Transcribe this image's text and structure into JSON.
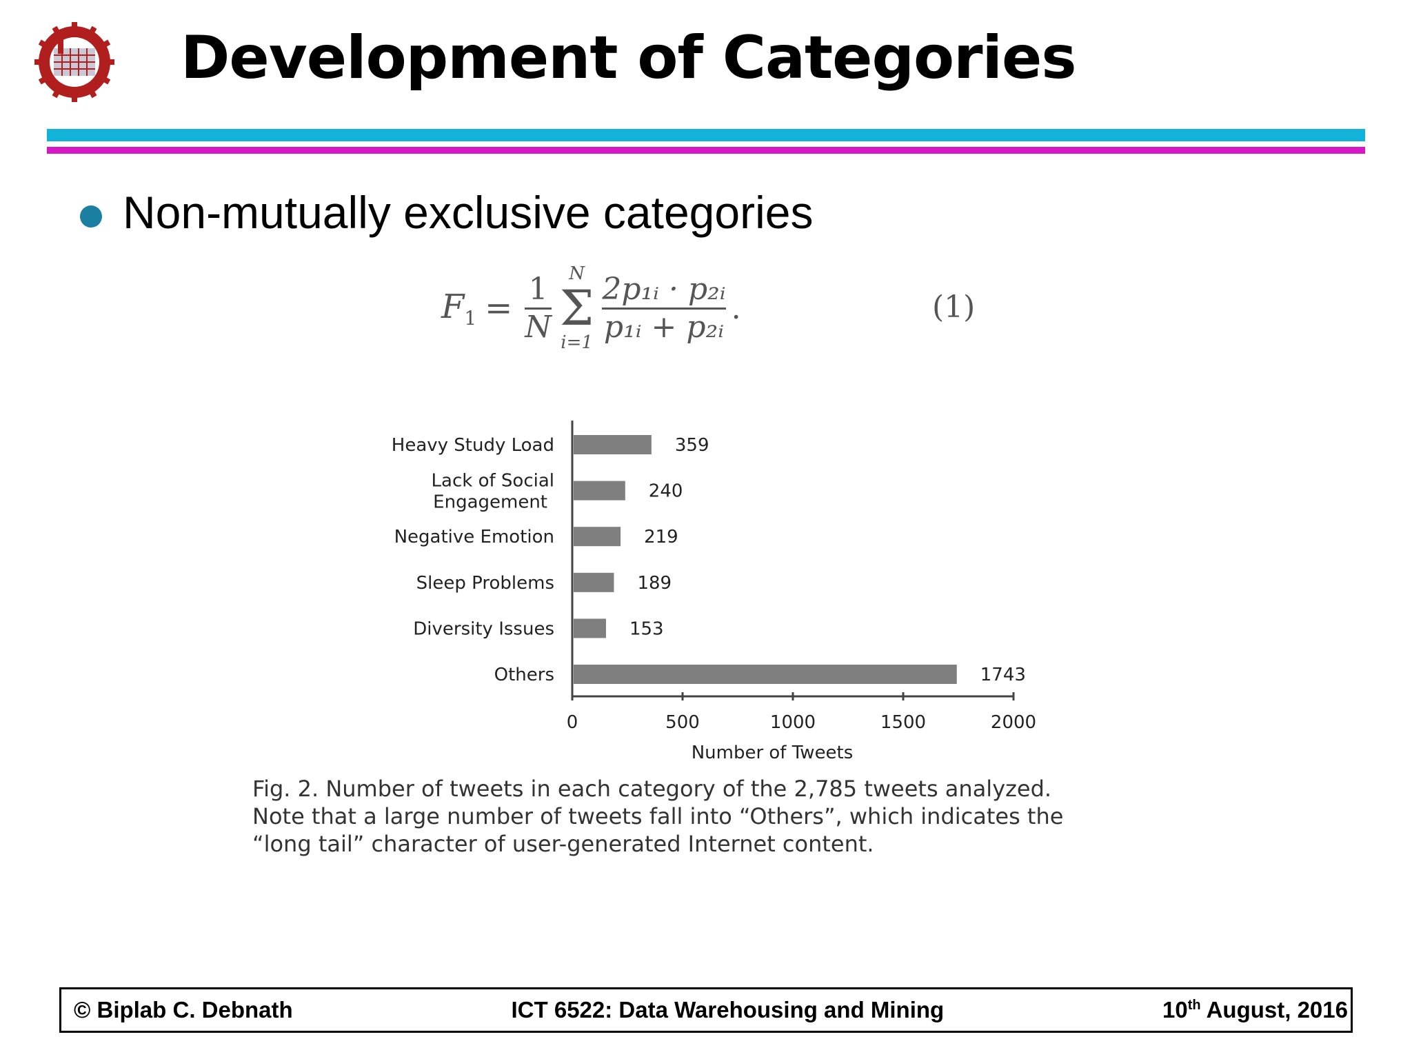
{
  "slide": {
    "title": "Development of Categories",
    "bullet": "Non-mutually exclusive categories",
    "colors": {
      "rule_top": "#12b3d9",
      "rule_bottom": "#d617c6",
      "bullet": "#1a7fa1",
      "logo": "#b01e1e"
    },
    "logo_icon": "university-seal-icon"
  },
  "formula": {
    "lhs": "F",
    "lhs_sub": "1",
    "equals": "=",
    "frac1_num": "1",
    "frac1_den": "N",
    "sum_upper": "N",
    "sum_lower": "i=1",
    "frac2_num": "2p₁ᵢ · p₂ᵢ",
    "frac2_den": "p₁ᵢ + p₂ᵢ",
    "terminator": ".",
    "number": "(1)"
  },
  "chart_data": {
    "type": "bar",
    "orientation": "horizontal",
    "categories": [
      "Heavy Study Load",
      "Lack of Social Engagement",
      "Negative Emotion",
      "Sleep Problems",
      "Diversity Issues",
      "Others"
    ],
    "values": [
      359,
      240,
      219,
      189,
      153,
      1743
    ],
    "value_labels": [
      "359",
      "240",
      "219",
      "189",
      "153",
      "1743"
    ],
    "xlabel": "Number of Tweets",
    "xlim": [
      0,
      2000
    ],
    "xticks": [
      0,
      500,
      1000,
      1500,
      2000
    ],
    "xtick_labels": [
      "0",
      "500",
      "1000",
      "1500",
      "2000"
    ],
    "grid": false,
    "bar_color": "#7f7f7f"
  },
  "caption": {
    "line1": "Fig. 2. Number of tweets in each category of the 2,785 tweets analyzed.",
    "line2": "Note that a large number of tweets fall into “Others”, which indicates the",
    "line3": "“long tail” character of user-generated Internet content."
  },
  "footer": {
    "author": "© Biplab C. Debnath",
    "course": "ICT 6522: Data Warehousing and Mining",
    "date_day": "10",
    "date_suffix": "th",
    "date_rest": " August, 2016"
  }
}
